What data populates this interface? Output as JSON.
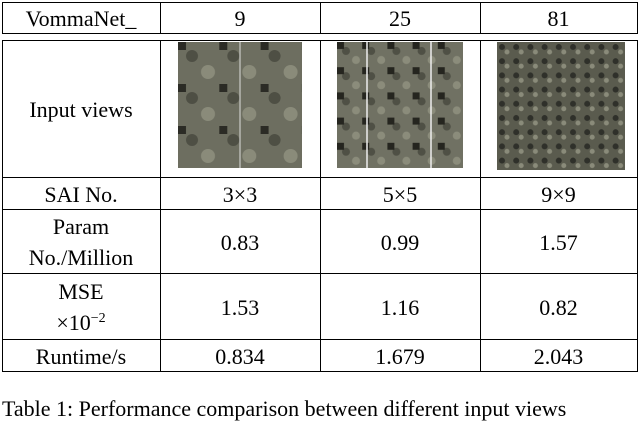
{
  "table": {
    "header": [
      "VommaNet_",
      "9",
      "25",
      "81"
    ],
    "rows": [
      {
        "label": [
          "Input views"
        ]
      },
      {
        "label": [
          "SAI No."
        ],
        "cells": [
          "3×3",
          "5×5",
          "9×9"
        ]
      },
      {
        "label": [
          "Param",
          "No./Million"
        ],
        "cells": [
          "0.83",
          "0.99",
          "1.57"
        ]
      },
      {
        "label": [
          "MSE"
        ],
        "unit": {
          "base": "×10",
          "exp": "−2"
        },
        "cells": [
          "1.53",
          "1.16",
          "0.82"
        ]
      },
      {
        "label": [
          "Runtime/s"
        ],
        "cells": [
          "0.834",
          "1.679",
          "2.043"
        ]
      }
    ]
  },
  "caption": "Table 1: Performance comparison between different input views"
}
